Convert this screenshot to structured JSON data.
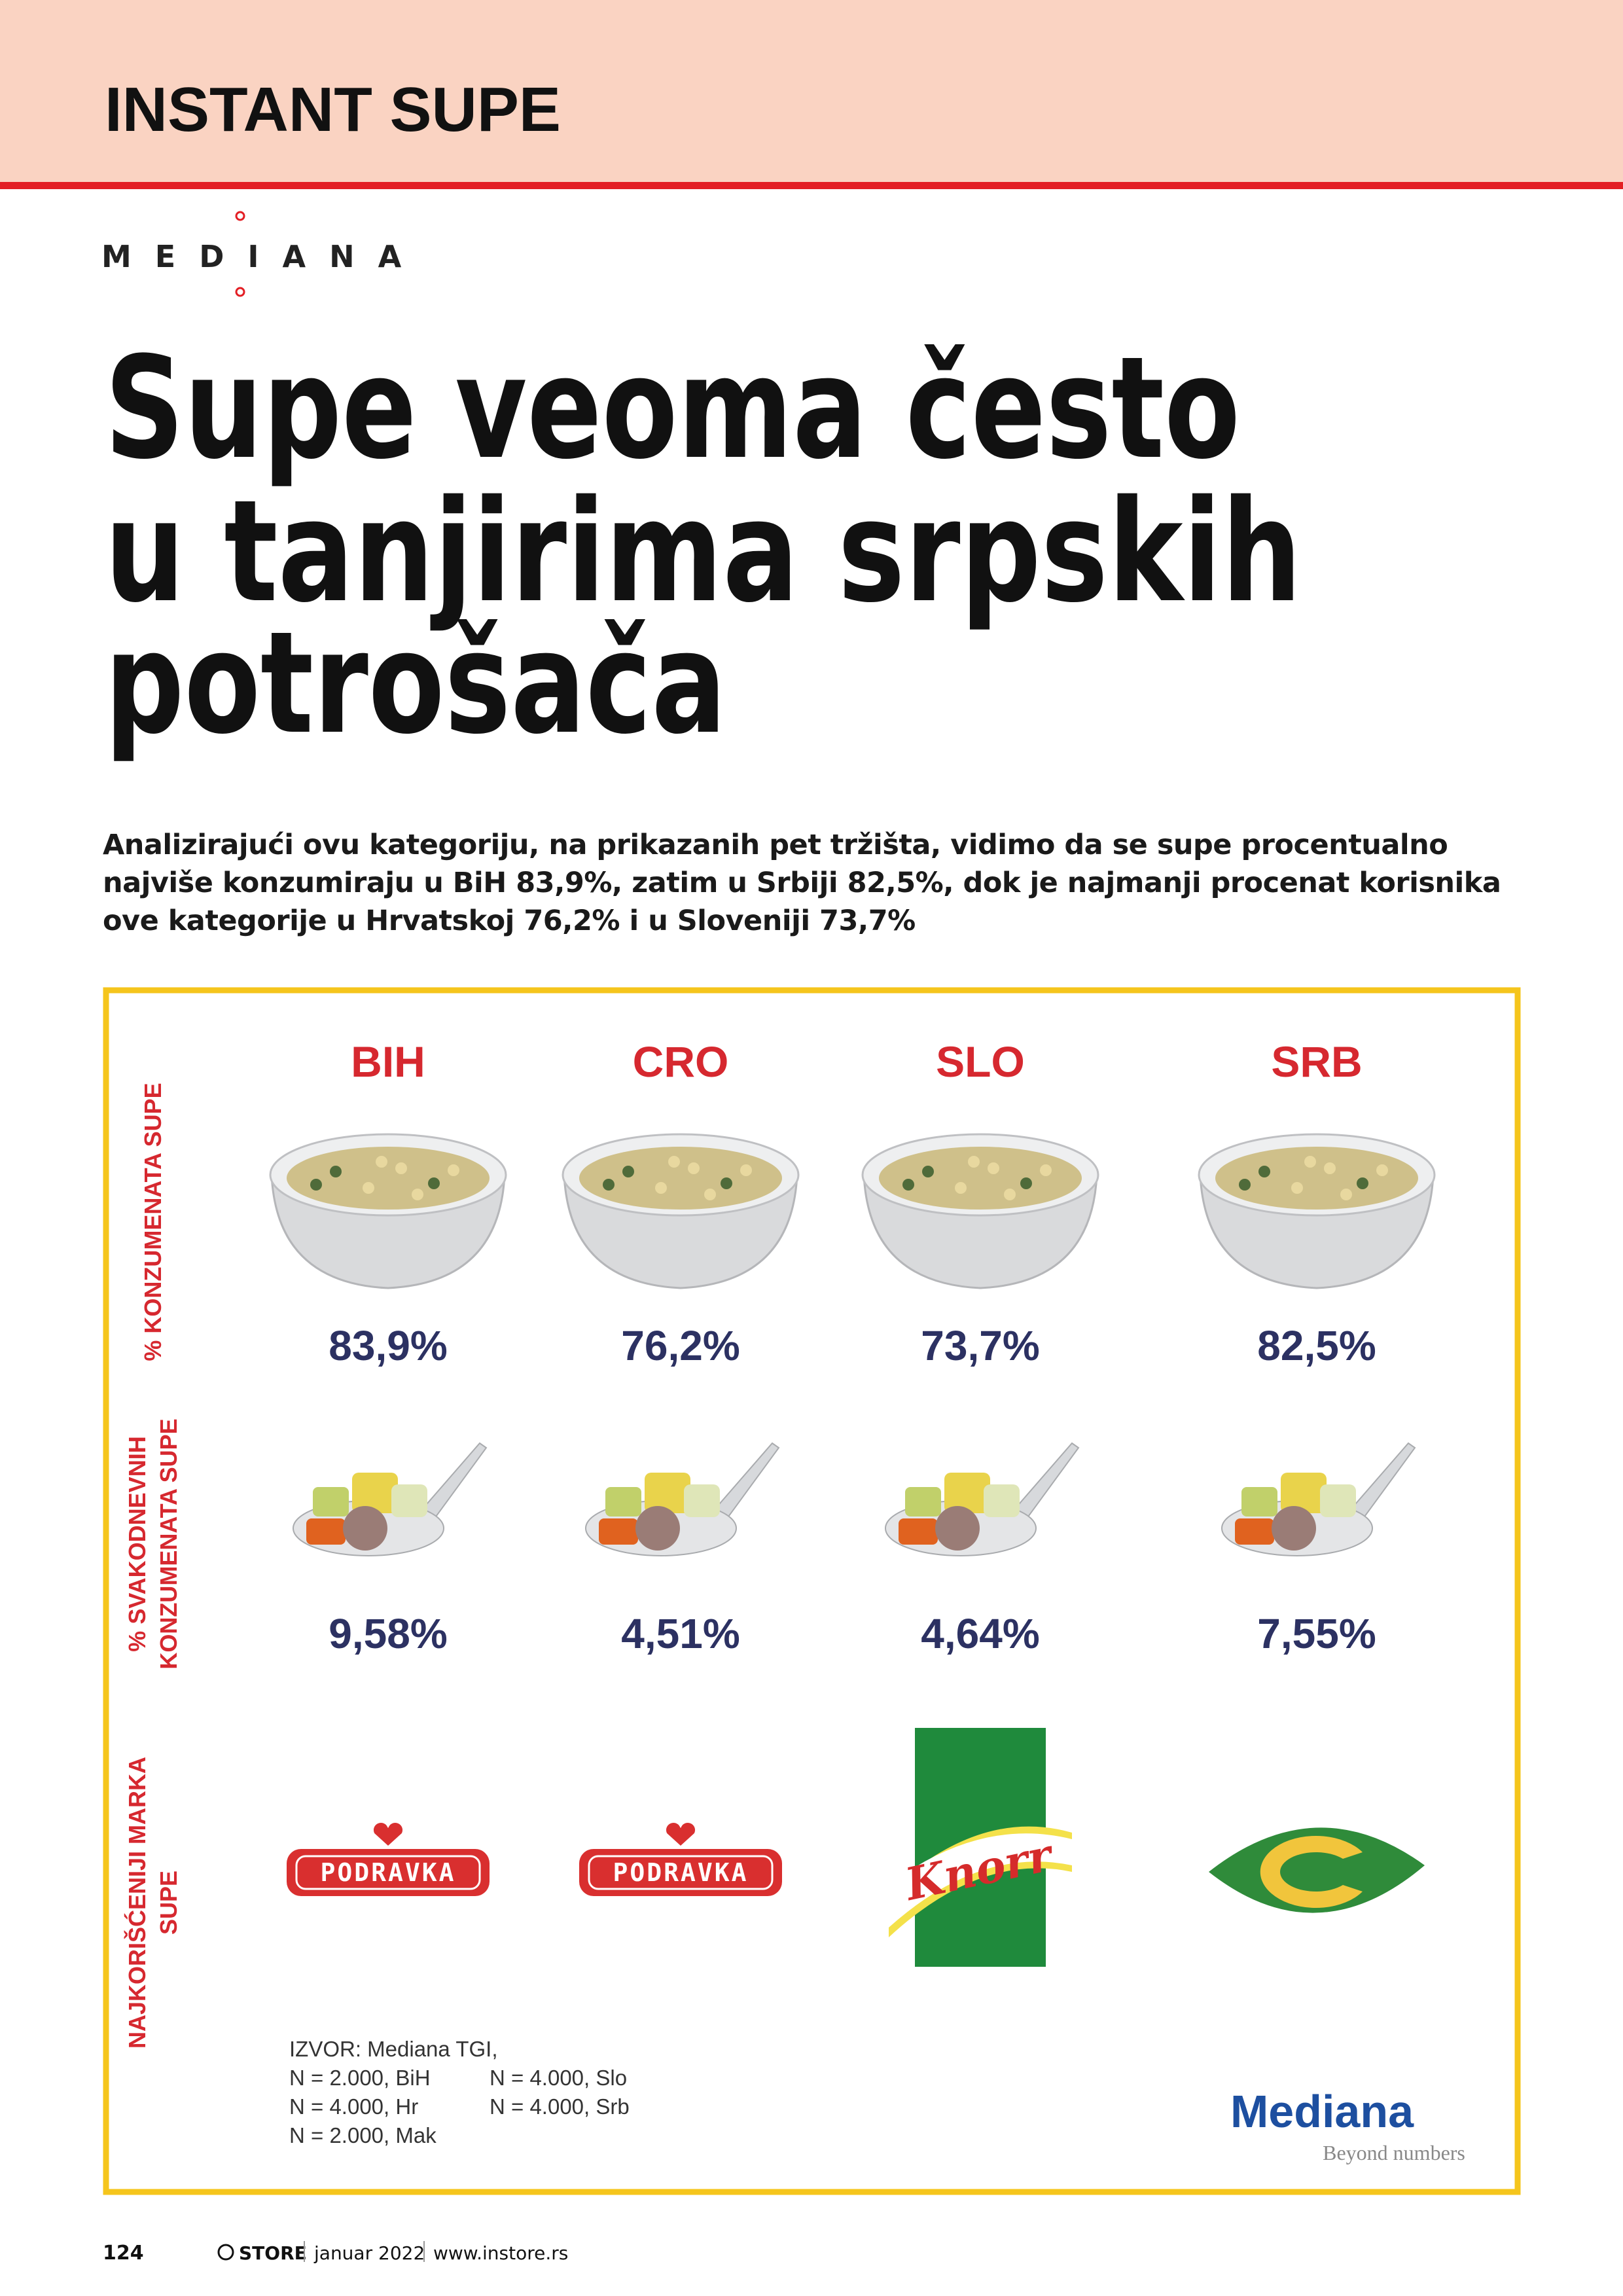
{
  "header": {
    "section": "INSTANT SUPE",
    "logo": "MEDIANA"
  },
  "article": {
    "title": [
      "Supe veoma često",
      "u tanjirima srpskih",
      "potrošača"
    ],
    "lead": "Analizirajući ovu kategoriju, na prikazanih pet tržišta, vidimo da se supe procentualno najviše konzumiraju u BiH 83,9%, zatim u Srbiji 82,5%, dok je najmanji procenat korisnika ove kategorije u Hrvatskoj 76,2% i u Sloveniji 73,7%"
  },
  "infographic": {
    "row_labels": [
      [
        "% KONZUMENATA SUPE"
      ],
      [
        "% SVAKODNEVNIH",
        "KONZUMENATA SUPE"
      ],
      [
        "NAJKORIŠĆENIJI MARKA",
        "SUPE"
      ]
    ],
    "columns": [
      {
        "country": "BIH",
        "consumers": "83,9%",
        "daily": "9,58%",
        "brand": "PODRAVKA"
      },
      {
        "country": "CRO",
        "consumers": "76,2%",
        "daily": "4,51%",
        "brand": "PODRAVKA"
      },
      {
        "country": "SLO",
        "consumers": "73,7%",
        "daily": "4,64%",
        "brand": "Knorr"
      },
      {
        "country": "SRB",
        "consumers": "82,5%",
        "daily": "7,55%"
      }
    ],
    "source": [
      [
        "IZVOR: Mediana TGI,",
        "N = 2.000, BiH",
        "N = 4.000, Hr",
        "N = 2.000, Mak"
      ],
      [
        "N = 4.000, Slo",
        "N = 4.000, Srb"
      ]
    ],
    "logo": {
      "name": "Mediana",
      "tagline": "Beyond numbers"
    }
  },
  "footer": {
    "page": "124",
    "magazine": "STORE",
    "date": "januar 2022",
    "url": "www.instore.rs"
  }
}
